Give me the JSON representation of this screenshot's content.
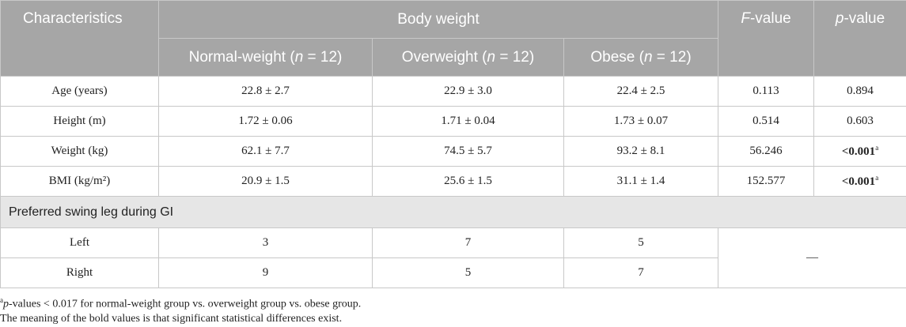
{
  "table": {
    "header": {
      "characteristics": "Characteristics",
      "body_weight": "Body weight",
      "f_value": {
        "italic": "F",
        "text": "-value"
      },
      "p_value": {
        "italic": "p",
        "text": "-value"
      },
      "groups": [
        {
          "text": "Normal-weight (",
          "italic": "n",
          "rest": " = 12)"
        },
        {
          "text": "Overweight (",
          "italic": "n",
          "rest": " = 12)"
        },
        {
          "text": "Obese (",
          "italic": "n",
          "rest": " = 12)"
        }
      ]
    },
    "rows": [
      [
        "Age (years)",
        "22.8 ± 2.7",
        "22.9 ± 3.0",
        "22.4 ± 2.5",
        "0.113",
        "0.894"
      ],
      [
        "Height (m)",
        "1.72 ± 0.06",
        "1.71 ± 0.04",
        "1.73 ± 0.07",
        "0.514",
        "0.603"
      ],
      [
        "Weight (kg)",
        "62.1 ± 7.7",
        "74.5 ± 5.7",
        "93.2 ± 8.1",
        "56.246",
        {
          "bold": "<0.001",
          "sup": "a"
        }
      ],
      [
        "BMI (kg/m²)",
        "20.9 ± 1.5",
        "25.6 ± 1.5",
        "31.1 ± 1.4",
        "152.577",
        {
          "bold": "<0.001",
          "sup": "a"
        }
      ]
    ],
    "section": "Preferred swing leg during GI",
    "swing_rows": [
      [
        "Left",
        "3",
        "7",
        "5"
      ],
      [
        "Right",
        "9",
        "5",
        "7"
      ]
    ],
    "swing_stat": "—"
  },
  "footnotes": [
    {
      "sup": "a",
      "italic": "p",
      "text": "-values < 0.017 for normal-weight group vs. overweight group vs. obese group."
    },
    "The meaning of the bold values is that significant statistical differences exist."
  ]
}
